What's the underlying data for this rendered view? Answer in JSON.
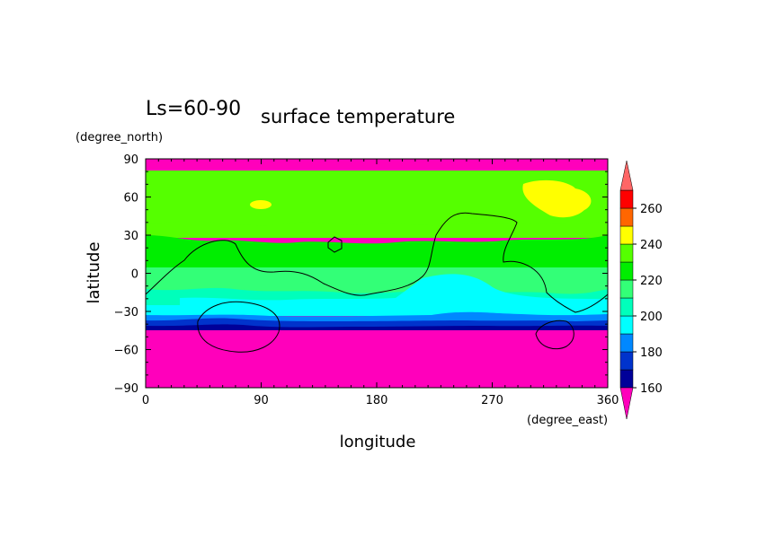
{
  "chart_data": {
    "type": "heatmap",
    "title_left": "Ls=60-90",
    "title": "surface temperature",
    "xlabel": "longitude",
    "ylabel": "latitude",
    "x_units": "(degree_east)",
    "y_units": "(degree_north)",
    "xlim": [
      0,
      360
    ],
    "ylim": [
      -90,
      90
    ],
    "x_ticks": [
      0,
      90,
      180,
      270,
      360
    ],
    "y_ticks": [
      90,
      60,
      30,
      0,
      -30,
      -60,
      -90
    ],
    "colorbar": {
      "levels": [
        160,
        170,
        180,
        190,
        200,
        210,
        220,
        230,
        240,
        250,
        260,
        270
      ],
      "tick_labels": [
        160,
        180,
        200,
        220,
        240,
        260
      ],
      "colors": [
        "#000099",
        "#0033cc",
        "#0088ff",
        "#00ffff",
        "#00ffbb",
        "#33ff77",
        "#00ee00",
        "#55ff00",
        "#ffff00",
        "#ff6600",
        "#ff0000",
        "#ff6666"
      ],
      "under_color": "#ff00bb",
      "over_color": "#ff6666"
    },
    "grid": false,
    "bands_by_latitude": [
      {
        "lat_range": [
          80,
          87
        ],
        "value_range": "<160"
      },
      {
        "lat_range": [
          35,
          78
        ],
        "value_range": "220-230"
      },
      {
        "lat_range": [
          15,
          35
        ],
        "value_range": "210-220"
      },
      {
        "lat_range": [
          -20,
          15
        ],
        "value_range": "190-210"
      },
      {
        "lat_range": [
          -33,
          -20
        ],
        "value_range": "180-190"
      },
      {
        "lat_range": [
          -38,
          -33
        ],
        "value_range": "170-180"
      },
      {
        "lat_range": [
          -43,
          -38
        ],
        "value_range": "160-170"
      },
      {
        "lat_range": [
          -87,
          -43
        ],
        "value_range": "<160"
      }
    ],
    "features": [
      {
        "region": "north-polar-warm-patch",
        "lon_range": [
          295,
          345
        ],
        "lat_range": [
          50,
          72
        ],
        "value_range": "230-240"
      },
      {
        "region": "small-warm-patch",
        "lon_range": [
          82,
          98
        ],
        "lat_range": [
          52,
          58
        ],
        "value_range": "230-240"
      },
      {
        "region": "equatorial-cool-region",
        "lon_range": [
          180,
          265
        ],
        "lat_range": [
          -30,
          -2
        ],
        "value_range": "180-190"
      }
    ]
  }
}
